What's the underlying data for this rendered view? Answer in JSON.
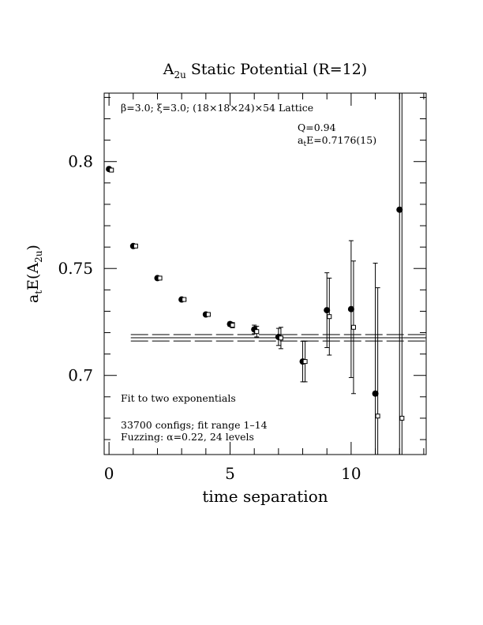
{
  "chart_data": {
    "type": "scatter",
    "title": "A",
    "title_sub": "2u",
    "title_rest": " Static Potential (R=12)",
    "xlabel": "time separation",
    "ylabel": "a",
    "ylabel_sub1": "t",
    "ylabel_mid": "E(A",
    "ylabel_sub2": "2u",
    "ylabel_end": ")",
    "xlim": [
      -0.2,
      13.1
    ],
    "ylim": [
      0.663,
      0.832
    ],
    "x_ticks": [
      0,
      5,
      10
    ],
    "x_tick_labels": [
      "0",
      "5",
      "10"
    ],
    "y_ticks": [
      0.7,
      0.75,
      0.8
    ],
    "y_tick_labels": [
      "0.7",
      "0.75",
      "0.8"
    ],
    "annotations": {
      "lattice_beta": "β=3.0; ξ=3.0; (18×18×24)×54 Lattice",
      "q_value": "Q=0.94",
      "fit_energy_prefix": "a",
      "fit_energy_sub": "t",
      "fit_energy_rest": "E=0.7176(15)",
      "fit_method": "Fit to two exponentials",
      "configs": "33700 configs; fit range 1–14",
      "fuzzing": "Fuzzing: α=0.22, 24 levels"
    },
    "fit_band": {
      "center": 0.7176,
      "error": 0.0015
    },
    "series": [
      {
        "marker": "filled-circle",
        "x": [
          0,
          1,
          2,
          3,
          4,
          5,
          6,
          7,
          8,
          9,
          10,
          11,
          12
        ],
        "y": [
          0.7965,
          0.7605,
          0.7455,
          0.7355,
          0.7285,
          0.724,
          0.7215,
          0.718,
          0.7065,
          0.7305,
          0.731,
          0.6915,
          0.7775
        ],
        "err": [
          0.0005,
          0.0005,
          0.0005,
          0.0005,
          0.0006,
          0.001,
          0.002,
          0.004,
          0.0095,
          0.0175,
          0.032,
          0.061,
          0.2
        ]
      },
      {
        "marker": "open-square",
        "x": [
          0.1,
          1.1,
          2.1,
          3.1,
          4.1,
          5.1,
          6.1,
          7.1,
          8.1,
          9.1,
          10.1,
          11.1,
          12.1
        ],
        "y": [
          0.796,
          0.7605,
          0.7455,
          0.7355,
          0.7285,
          0.7235,
          0.7205,
          0.7175,
          0.7065,
          0.7275,
          0.7225,
          0.681,
          0.68
        ],
        "err": [
          0.0005,
          0.0005,
          0.0005,
          0.0005,
          0.0006,
          0.0012,
          0.0025,
          0.005,
          0.0095,
          0.018,
          0.031,
          0.06,
          0.2
        ]
      }
    ]
  }
}
